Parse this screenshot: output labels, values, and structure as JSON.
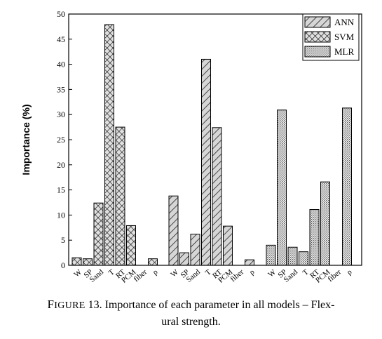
{
  "chart_data": {
    "type": "bar",
    "ylabel": "Importance (%)",
    "ylim": [
      0,
      50
    ],
    "yticks": [
      "0",
      "5",
      "10",
      "15",
      "20",
      "25",
      "30",
      "35",
      "40",
      "45",
      "50"
    ],
    "grid": false,
    "legend_position": "top-right",
    "categories": [
      "W",
      "SP",
      "Sand",
      "T",
      "RT",
      "PCM",
      "fiber",
      "ρ"
    ],
    "series": [
      {
        "name": "SVM",
        "pattern": "crosshatch",
        "values": [
          1.5,
          1.3,
          12.4,
          47.9,
          27.5,
          7.9,
          0.0,
          1.3
        ]
      },
      {
        "name": "ANN",
        "pattern": "diagonal",
        "values": [
          13.8,
          2.5,
          6.2,
          41.0,
          27.4,
          7.8,
          0.0,
          1.1
        ]
      },
      {
        "name": "MLR",
        "pattern": "dotted",
        "values": [
          4.0,
          30.9,
          3.6,
          2.7,
          11.1,
          16.6,
          0.0,
          31.3
        ]
      }
    ],
    "group_order": [
      "SVM",
      "ANN",
      "MLR"
    ],
    "legend_order": [
      "ANN",
      "SVM",
      "MLR"
    ]
  },
  "caption": {
    "label_first": "F",
    "label_rest": "IGURE",
    "number": "13",
    "text_line1": ". Importance of each parameter in all models – Flex-",
    "text_line2": "ural strength."
  }
}
